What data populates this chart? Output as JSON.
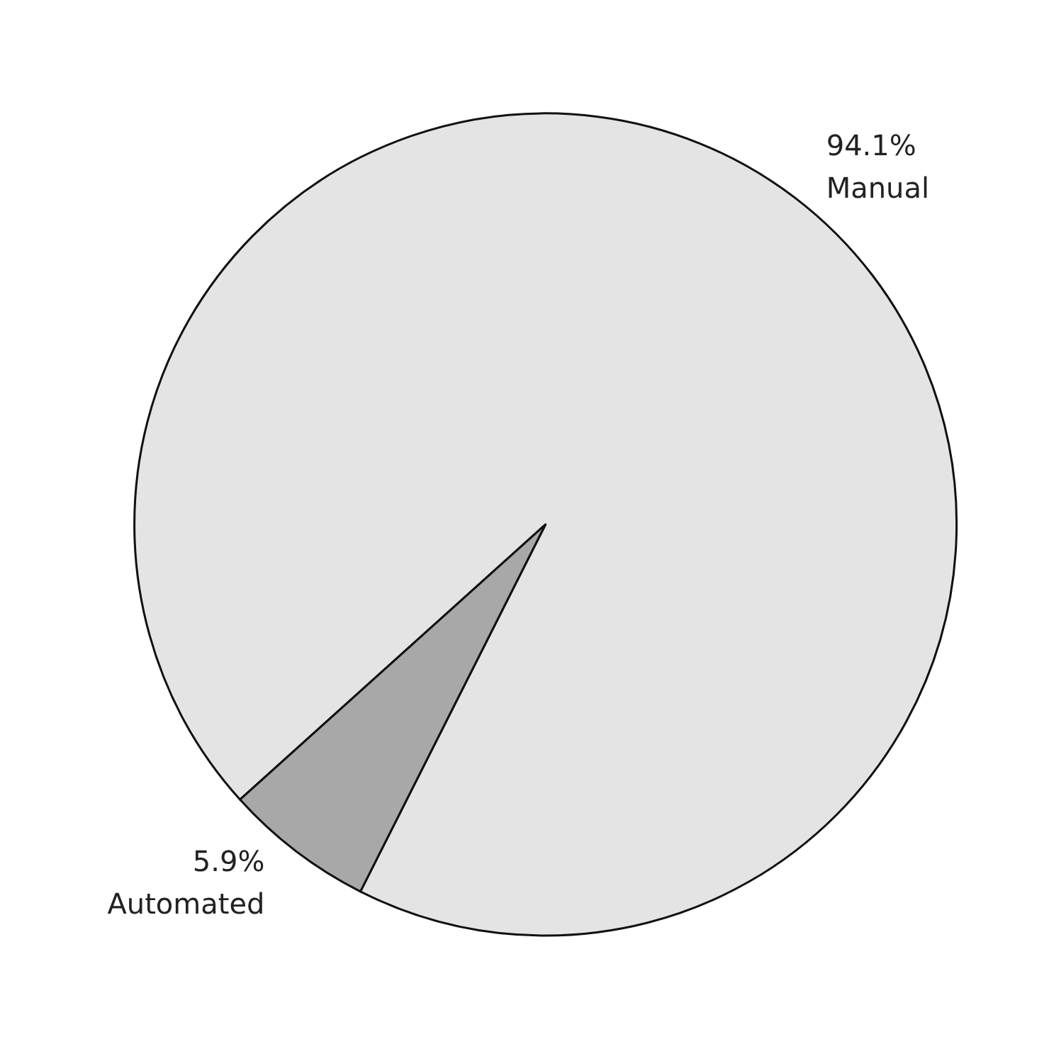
{
  "chart_data": {
    "type": "pie",
    "categories": [
      "Manual",
      "Automated"
    ],
    "values": [
      94.1,
      5.9
    ],
    "value_labels": [
      "94.1%",
      "5.9%"
    ],
    "colors": [
      "#e4e4e4",
      "#a8a8a8"
    ]
  }
}
